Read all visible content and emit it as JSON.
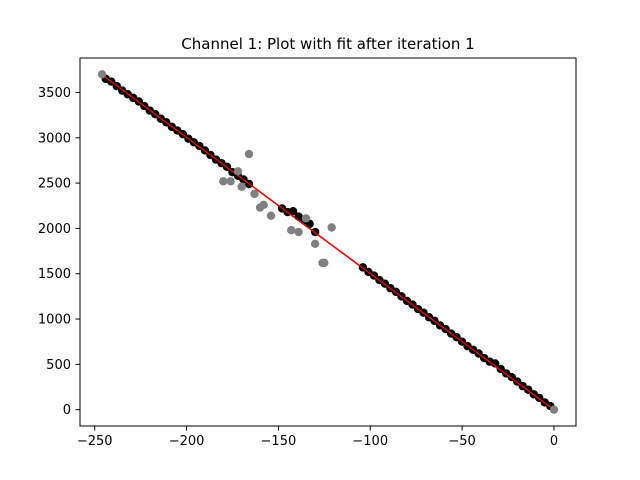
{
  "chart_data": {
    "type": "scatter",
    "title": "Channel 1: Plot with fit after iteration 1",
    "xlabel": "",
    "ylabel": "",
    "xlim": [
      -258,
      12
    ],
    "ylim": [
      -180,
      3880
    ],
    "xticks": [
      -250,
      -200,
      -150,
      -100,
      -50,
      0
    ],
    "yticks": [
      0,
      500,
      1000,
      1500,
      2000,
      2500,
      3000,
      3500
    ],
    "xtick_labels": [
      "−250",
      "−200",
      "−150",
      "−100",
      "−50",
      "0"
    ],
    "ytick_labels": [
      "0",
      "500",
      "1000",
      "1500",
      "2000",
      "2500",
      "3000",
      "3500"
    ],
    "grid": false,
    "legend": "none",
    "colors": {
      "fit": "#ff0000",
      "inlier": "#000000",
      "outlier": "#808080"
    },
    "fit_line": {
      "x": [
        -245,
        0
      ],
      "y": [
        3680,
        0
      ]
    },
    "series": [
      {
        "role": "inliers",
        "x": [
          -244,
          -241,
          -238,
          -235,
          -232,
          -229,
          -226,
          -223,
          -220,
          -217,
          -214,
          -211,
          -208,
          -205,
          -202,
          -199,
          -196,
          -193,
          -190,
          -187,
          -184,
          -181,
          -178,
          -175,
          -172,
          -169,
          -166,
          -148,
          -145,
          -142,
          -139,
          -136,
          -133,
          -130,
          -104,
          -101,
          -98,
          -95,
          -92,
          -89,
          -86,
          -83,
          -80,
          -77,
          -74,
          -71,
          -68,
          -65,
          -62,
          -59,
          -56,
          -53,
          -50,
          -47,
          -44,
          -41,
          -38,
          -35,
          -32,
          -29,
          -26,
          -23,
          -20,
          -17,
          -14,
          -11,
          -8,
          -5,
          -2
        ],
        "y": [
          3650,
          3620,
          3570,
          3520,
          3480,
          3440,
          3400,
          3350,
          3300,
          3260,
          3210,
          3170,
          3120,
          3080,
          3040,
          2990,
          2950,
          2910,
          2860,
          2810,
          2760,
          2720,
          2680,
          2620,
          2580,
          2540,
          2490,
          2220,
          2180,
          2190,
          2130,
          2090,
          2050,
          1960,
          1570,
          1520,
          1480,
          1430,
          1390,
          1340,
          1300,
          1250,
          1200,
          1160,
          1110,
          1070,
          1020,
          980,
          930,
          890,
          840,
          800,
          750,
          700,
          660,
          620,
          570,
          530,
          510,
          450,
          400,
          360,
          310,
          260,
          220,
          170,
          130,
          80,
          40
        ]
      },
      {
        "role": "outliers",
        "x": [
          -246,
          -180,
          -176,
          -172,
          -170,
          -166,
          -163,
          -160,
          -158,
          -154,
          -143,
          -139,
          -135,
          -130,
          -125,
          -121,
          -126,
          0
        ],
        "y": [
          3700,
          2520,
          2520,
          2630,
          2460,
          2820,
          2380,
          2230,
          2260,
          2140,
          1980,
          1960,
          2110,
          1830,
          1620,
          2010,
          1620,
          0
        ]
      }
    ]
  }
}
